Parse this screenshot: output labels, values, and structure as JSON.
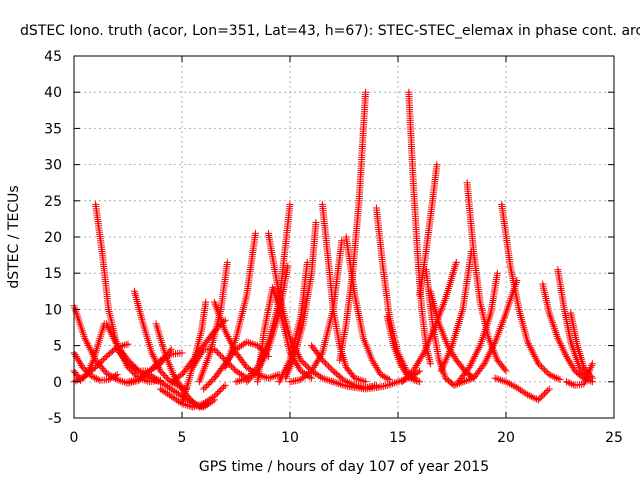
{
  "chart_data": {
    "type": "scatter",
    "title": "dSTEC Iono. truth (acor, Lon=351, Lat=43, h=67): STEC-STEC_elemax in phase cont. arc",
    "xlabel": "GPS time / hours of day 107 of year 2015",
    "ylabel": "dSTEC  / TECUs",
    "xlim": [
      0,
      25
    ],
    "ylim": [
      -5,
      45
    ],
    "xticks": [
      0,
      5,
      10,
      15,
      20,
      25
    ],
    "yticks": [
      -5,
      0,
      5,
      10,
      15,
      20,
      25,
      30,
      35,
      40,
      45
    ],
    "grid": true,
    "marker": "+",
    "color": "#ff0000",
    "series": [
      {
        "x": [
          0.0,
          0.5,
          1.0,
          1.5,
          2.0,
          2.5,
          3.0,
          3.5
        ],
        "y": [
          10.5,
          6.0,
          3.0,
          1.2,
          0.3,
          -0.2,
          0.2,
          1.5
        ]
      },
      {
        "x": [
          0.0,
          0.4,
          0.8,
          1.2,
          1.6,
          2.0
        ],
        "y": [
          4.0,
          2.0,
          0.8,
          0.2,
          0.3,
          1.0
        ]
      },
      {
        "x": [
          0.0,
          0.3,
          0.6,
          0.9,
          1.2,
          1.4
        ],
        "y": [
          1.5,
          0.2,
          1.0,
          3.0,
          6.0,
          8.0
        ]
      },
      {
        "x": [
          0.0,
          0.5,
          1.0,
          1.5,
          2.0,
          2.5
        ],
        "y": [
          0.0,
          0.8,
          2.0,
          3.5,
          4.8,
          5.2
        ]
      },
      {
        "x": [
          1.0,
          1.3,
          1.6,
          2.0,
          2.5,
          3.0,
          3.5,
          4.0
        ],
        "y": [
          24.5,
          18.0,
          10.0,
          5.0,
          2.0,
          0.5,
          0.0,
          0.2
        ]
      },
      {
        "x": [
          1.5,
          2.0,
          2.5,
          3.0,
          3.5,
          4.0
        ],
        "y": [
          8.0,
          5.0,
          3.0,
          1.5,
          0.5,
          0.0
        ]
      },
      {
        "x": [
          2.0,
          2.5,
          3.0,
          3.5,
          4.0,
          4.5
        ],
        "y": [
          4.5,
          2.5,
          1.5,
          1.5,
          2.5,
          4.5
        ]
      },
      {
        "x": [
          2.8,
          3.2,
          3.6,
          4.0,
          4.4,
          4.8,
          5.2
        ],
        "y": [
          12.5,
          8.0,
          4.0,
          1.5,
          0.2,
          -0.5,
          -1.0
        ]
      },
      {
        "x": [
          2.5,
          3.0,
          3.5,
          4.0,
          4.5,
          5.0
        ],
        "y": [
          0.0,
          0.3,
          1.5,
          3.0,
          3.8,
          4.0
        ]
      },
      {
        "x": [
          3.8,
          4.2,
          4.6,
          5.0,
          5.4,
          5.8,
          6.2
        ],
        "y": [
          8.0,
          4.0,
          1.0,
          -1.0,
          -2.5,
          -3.5,
          -3.0
        ]
      },
      {
        "x": [
          3.5,
          4.0,
          4.5,
          5.0,
          5.5,
          6.0,
          6.5
        ],
        "y": [
          1.0,
          0.0,
          -1.0,
          -2.0,
          -3.0,
          -3.5,
          -2.5
        ]
      },
      {
        "x": [
          4.0,
          4.5,
          5.0,
          5.5,
          6.0,
          6.5,
          7.0
        ],
        "y": [
          -1.0,
          -2.0,
          -3.0,
          -3.5,
          -3.0,
          -2.0,
          -0.5
        ]
      },
      {
        "x": [
          4.5,
          5.0,
          5.5,
          6.0,
          6.5,
          7.0
        ],
        "y": [
          0.0,
          1.0,
          3.0,
          5.0,
          7.0,
          8.5
        ]
      },
      {
        "x": [
          5.0,
          5.3,
          5.6,
          5.9,
          6.1
        ],
        "y": [
          -3.0,
          0.0,
          3.5,
          7.0,
          11.0
        ]
      },
      {
        "x": [
          5.5,
          6.0,
          6.5,
          7.0,
          7.5,
          8.0
        ],
        "y": [
          2.0,
          4.5,
          4.5,
          3.0,
          1.5,
          0.5
        ]
      },
      {
        "x": [
          6.0,
          6.5,
          7.0,
          7.5,
          8.0,
          8.5,
          9.0
        ],
        "y": [
          -1.0,
          0.5,
          2.5,
          4.5,
          5.5,
          5.0,
          3.5
        ]
      },
      {
        "x": [
          5.8,
          6.3,
          6.8,
          7.1
        ],
        "y": [
          0.0,
          4.0,
          10.0,
          16.5
        ]
      },
      {
        "x": [
          6.5,
          7.0,
          7.5,
          8.0,
          8.5,
          9.0,
          9.5
        ],
        "y": [
          11.0,
          7.0,
          4.0,
          2.0,
          1.0,
          0.5,
          1.0
        ]
      },
      {
        "x": [
          7.0,
          7.5,
          8.0,
          8.4
        ],
        "y": [
          2.0,
          6.0,
          12.0,
          20.5
        ]
      },
      {
        "x": [
          7.5,
          8.0,
          8.5,
          9.0,
          9.5,
          10.0
        ],
        "y": [
          0.0,
          0.5,
          2.0,
          5.5,
          11.0,
          24.5
        ]
      },
      {
        "x": [
          8.0,
          8.5,
          9.0,
          9.5,
          9.9
        ],
        "y": [
          0.0,
          1.5,
          4.5,
          9.5,
          16.0
        ]
      },
      {
        "x": [
          8.5,
          8.8,
          9.2,
          9.6,
          10.0,
          10.5,
          11.0
        ],
        "y": [
          0.0,
          7.0,
          13.0,
          9.0,
          4.0,
          1.5,
          0.5
        ]
      },
      {
        "x": [
          9.0,
          9.5,
          10.0,
          10.5,
          11.0,
          11.5,
          12.0
        ],
        "y": [
          20.5,
          12.0,
          6.0,
          3.0,
          1.5,
          0.5,
          0.0
        ]
      },
      {
        "x": [
          9.5,
          10.0,
          10.5,
          10.8
        ],
        "y": [
          0.0,
          3.0,
          9.0,
          16.5
        ]
      },
      {
        "x": [
          9.8,
          10.2,
          10.6,
          11.0,
          11.2
        ],
        "y": [
          0.5,
          3.5,
          8.0,
          15.0,
          22.0
        ]
      },
      {
        "x": [
          10.0,
          10.5,
          11.0,
          11.5,
          12.0,
          12.4
        ],
        "y": [
          0.0,
          0.3,
          1.5,
          4.0,
          10.0,
          19.5
        ]
      },
      {
        "x": [
          11.0,
          11.5,
          12.0,
          12.5,
          13.0,
          13.5,
          14.0
        ],
        "y": [
          5.0,
          3.0,
          1.5,
          0.2,
          -0.5,
          -0.8,
          -0.5
        ]
      },
      {
        "x": [
          11.5,
          11.8,
          12.0,
          12.3,
          12.6,
          13.0,
          13.5
        ],
        "y": [
          24.5,
          16.0,
          10.0,
          5.0,
          2.0,
          0.5,
          0.0
        ]
      },
      {
        "x": [
          12.0,
          12.5,
          13.0,
          13.5,
          14.0,
          14.5,
          15.0,
          15.5,
          16.0
        ],
        "y": [
          0.0,
          -0.5,
          -0.8,
          -1.0,
          -0.8,
          -0.5,
          0.0,
          0.5,
          1.5
        ]
      },
      {
        "x": [
          12.3,
          12.6,
          12.9,
          13.2,
          13.5
        ],
        "y": [
          3.0,
          8.0,
          15.0,
          25.0,
          40.0
        ]
      },
      {
        "x": [
          12.6,
          13.0,
          13.4,
          13.8,
          14.2,
          14.6
        ],
        "y": [
          20.0,
          12.0,
          6.0,
          3.0,
          1.0,
          0.3
        ]
      },
      {
        "x": [
          14.0,
          14.3,
          14.6,
          15.0,
          15.4,
          15.8
        ],
        "y": [
          24.0,
          16.0,
          9.0,
          4.0,
          1.5,
          0.5
        ]
      },
      {
        "x": [
          14.5,
          14.8,
          15.1,
          15.4,
          15.7,
          16.0
        ],
        "y": [
          9.0,
          5.0,
          2.5,
          1.0,
          0.3,
          0.0
        ]
      },
      {
        "x": [
          15.5,
          15.7,
          15.9,
          16.1,
          16.3,
          16.5
        ],
        "y": [
          40.0,
          28.0,
          18.0,
          10.0,
          5.0,
          2.5
        ]
      },
      {
        "x": [
          15.2,
          15.7,
          16.2,
          16.7,
          17.2,
          17.7
        ],
        "y": [
          0.0,
          1.5,
          4.0,
          7.5,
          11.5,
          16.5
        ]
      },
      {
        "x": [
          16.0,
          16.3,
          16.6,
          16.8
        ],
        "y": [
          12.0,
          18.0,
          25.0,
          30.0
        ]
      },
      {
        "x": [
          16.3,
          16.6,
          16.9,
          17.2,
          17.6,
          18.0
        ],
        "y": [
          15.5,
          8.0,
          3.0,
          0.5,
          -0.5,
          0.0
        ]
      },
      {
        "x": [
          16.5,
          16.9,
          17.3,
          17.7,
          18.1,
          18.5
        ],
        "y": [
          12.5,
          8.0,
          5.0,
          3.0,
          1.5,
          0.5
        ]
      },
      {
        "x": [
          17.0,
          17.5,
          18.0,
          18.4
        ],
        "y": [
          1.5,
          5.0,
          10.0,
          18.0
        ]
      },
      {
        "x": [
          18.2,
          18.5,
          18.8,
          19.2,
          19.6,
          20.0
        ],
        "y": [
          27.5,
          18.0,
          11.0,
          6.0,
          3.0,
          1.5
        ]
      },
      {
        "x": [
          18.0,
          18.5,
          19.0,
          19.5,
          20.0,
          20.5
        ],
        "y": [
          0.0,
          0.5,
          2.5,
          5.5,
          9.5,
          14.0
        ]
      },
      {
        "x": [
          17.8,
          18.3,
          18.8,
          19.3,
          19.6
        ],
        "y": [
          0.0,
          2.0,
          5.0,
          9.5,
          15.0
        ]
      },
      {
        "x": [
          19.8,
          20.2,
          20.6,
          21.0,
          21.5,
          22.0,
          22.5
        ],
        "y": [
          24.5,
          16.0,
          10.0,
          5.5,
          2.5,
          1.0,
          0.3
        ]
      },
      {
        "x": [
          19.5,
          20.0,
          20.5,
          21.0,
          21.5,
          22.0
        ],
        "y": [
          0.5,
          0.0,
          -0.8,
          -1.8,
          -2.5,
          -1.0
        ]
      },
      {
        "x": [
          21.7,
          22.0,
          22.4,
          22.8,
          23.2,
          23.6,
          24.0
        ],
        "y": [
          13.5,
          9.5,
          6.0,
          3.5,
          1.5,
          0.5,
          0.0
        ]
      },
      {
        "x": [
          22.4,
          22.7,
          23.0,
          23.4,
          23.8
        ],
        "y": [
          15.5,
          10.0,
          5.5,
          2.0,
          0.5
        ]
      },
      {
        "x": [
          23.0,
          23.3,
          23.6,
          24.0
        ],
        "y": [
          9.5,
          5.0,
          2.0,
          0.5
        ]
      },
      {
        "x": [
          22.8,
          23.2,
          23.6,
          24.0
        ],
        "y": [
          0.0,
          -0.5,
          -0.3,
          2.5
        ]
      }
    ]
  }
}
